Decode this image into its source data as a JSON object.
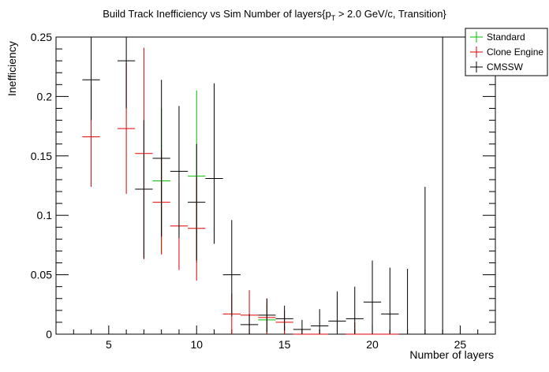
{
  "chart_data": {
    "type": "scatter",
    "title_main": "Build Track Inefficiency vs Sim Number of layers{p",
    "title_sub": "T",
    "title_rest": " > 2.0 GeV/c, Transition}",
    "xlabel": "Number of layers",
    "ylabel": "Inefficiency",
    "xlim": [
      2,
      27
    ],
    "ylim": [
      0,
      0.25
    ],
    "xticks": [
      5,
      10,
      15,
      20,
      25
    ],
    "yticks": [
      0,
      0.05,
      0.1,
      0.15,
      0.2,
      0.25
    ],
    "ytick_labels": [
      "0",
      "0.05",
      "0.1",
      "0.15",
      "0.2",
      "0.25"
    ],
    "legend": {
      "placement": "top-right"
    },
    "series": [
      {
        "name": "Standard",
        "color": "#00c000",
        "points": [
          {
            "x": 8,
            "y": 0.129,
            "lo": 0.068,
            "hi": 0.19
          },
          {
            "x": 10,
            "y": 0.133,
            "lo": 0.06,
            "hi": 0.205
          },
          {
            "x": 14,
            "y": 0.012,
            "lo": 0.0,
            "hi": 0.025
          },
          {
            "x": 16,
            "y": 0.0,
            "lo": 0.0,
            "hi": 0.004
          }
        ]
      },
      {
        "name": "Clone Engine",
        "color": "#e00000",
        "points": [
          {
            "x": 4,
            "y": 0.166,
            "lo": 0.124,
            "hi": 0.21
          },
          {
            "x": 6,
            "y": 0.173,
            "lo": 0.118,
            "hi": 0.228
          },
          {
            "x": 7,
            "y": 0.152,
            "lo": 0.063,
            "hi": 0.241
          },
          {
            "x": 8,
            "y": 0.111,
            "lo": 0.067,
            "hi": 0.155
          },
          {
            "x": 9,
            "y": 0.091,
            "lo": 0.054,
            "hi": 0.128
          },
          {
            "x": 10,
            "y": 0.089,
            "lo": 0.045,
            "hi": 0.132
          },
          {
            "x": 12,
            "y": 0.017,
            "lo": 0.0,
            "hi": 0.034
          },
          {
            "x": 13,
            "y": 0.016,
            "lo": 0.0,
            "hi": 0.037
          },
          {
            "x": 14,
            "y": 0.014,
            "lo": 0.0,
            "hi": 0.03
          },
          {
            "x": 15,
            "y": 0.01,
            "lo": 0.0,
            "hi": 0.02
          },
          {
            "x": 16,
            "y": 0.0,
            "lo": 0.0,
            "hi": 0.004
          },
          {
            "x": 17,
            "y": 0.0,
            "lo": 0.0,
            "hi": 0.003
          },
          {
            "x": 19,
            "y": 0.0,
            "lo": 0.0,
            "hi": 0.01
          },
          {
            "x": 20,
            "y": 0.0,
            "lo": 0.0,
            "hi": 0.003
          },
          {
            "x": 21,
            "y": 0.0,
            "lo": 0.0,
            "hi": 0.003
          }
        ]
      },
      {
        "name": "CMSSW",
        "color": "#000000",
        "points": [
          {
            "x": 4,
            "y": 0.214,
            "lo": 0.18,
            "hi": 0.25
          },
          {
            "x": 6,
            "y": 0.23,
            "lo": 0.19,
            "hi": 0.25
          },
          {
            "x": 7,
            "y": 0.122,
            "lo": 0.064,
            "hi": 0.18
          },
          {
            "x": 8,
            "y": 0.148,
            "lo": 0.082,
            "hi": 0.214
          },
          {
            "x": 9,
            "y": 0.137,
            "lo": 0.081,
            "hi": 0.192
          },
          {
            "x": 10,
            "y": 0.111,
            "lo": 0.062,
            "hi": 0.16
          },
          {
            "x": 11,
            "y": 0.131,
            "lo": 0.076,
            "hi": 0.211
          },
          {
            "x": 12,
            "y": 0.05,
            "lo": 0.015,
            "hi": 0.096
          },
          {
            "x": 13,
            "y": 0.008,
            "lo": 0.0,
            "hi": 0.017
          },
          {
            "x": 14,
            "y": 0.016,
            "lo": 0.002,
            "hi": 0.03
          },
          {
            "x": 15,
            "y": 0.013,
            "lo": 0.003,
            "hi": 0.024
          },
          {
            "x": 16,
            "y": 0.004,
            "lo": 0.0,
            "hi": 0.012
          },
          {
            "x": 17,
            "y": 0.007,
            "lo": 0.0,
            "hi": 0.021
          },
          {
            "x": 18,
            "y": 0.011,
            "lo": 0.0,
            "hi": 0.036
          },
          {
            "x": 19,
            "y": 0.013,
            "lo": 0.0,
            "hi": 0.04
          },
          {
            "x": 20,
            "y": 0.027,
            "lo": 0.0,
            "hi": 0.062
          },
          {
            "x": 21,
            "y": 0.017,
            "lo": 0.0,
            "hi": 0.056
          },
          {
            "x": 22,
            "y": 0.0,
            "lo": 0.0,
            "hi": 0.055
          },
          {
            "x": 23,
            "y": 0.0,
            "lo": 0.0,
            "hi": 0.124
          },
          {
            "x": 24,
            "y": 0.0,
            "lo": 0.0,
            "hi": 0.25
          }
        ]
      }
    ]
  }
}
